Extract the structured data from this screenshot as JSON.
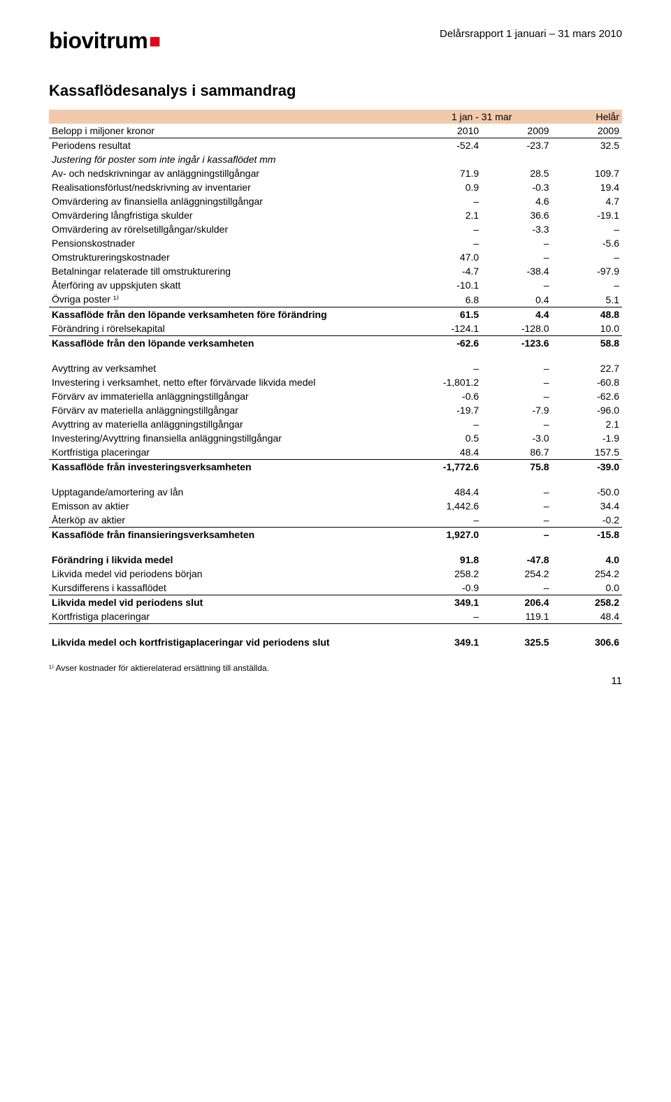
{
  "header": {
    "brand": "biovitrum",
    "report_title": "Delårsrapport 1 januari – 31 mars 2010"
  },
  "section_title": "Kassaflödesanalys i sammandrag",
  "colors": {
    "header_bg": "#f3c9ac",
    "accent": "#e30613",
    "text": "#000000",
    "background": "#ffffff"
  },
  "table": {
    "period_label_left": "Belopp i miljoner kronor",
    "period_col12": "1 jan - 31 mar",
    "period_col3": "Helår",
    "years": [
      "2010",
      "2009",
      "2009"
    ],
    "sections": [
      {
        "rows": [
          {
            "label": "Periodens resultat",
            "v": [
              "-52.4",
              "-23.7",
              "32.5"
            ]
          },
          {
            "label": "Justering för poster som inte ingår i kassaflödet mm",
            "italic": true,
            "v": [
              "",
              "",
              ""
            ]
          },
          {
            "label": "Av- och nedskrivningar av anläggningstillgångar",
            "v": [
              "71.9",
              "28.5",
              "109.7"
            ]
          },
          {
            "label": "Realisationsförlust/nedskrivning av inventarier",
            "v": [
              "0.9",
              "-0.3",
              "19.4"
            ]
          },
          {
            "label": "Omvärdering av finansiella anläggningstillgångar",
            "v": [
              "–",
              "4.6",
              "4.7"
            ]
          },
          {
            "label": "Omvärdering långfristiga skulder",
            "v": [
              "2.1",
              "36.6",
              "-19.1"
            ]
          },
          {
            "label": "Omvärdering av rörelsetillgångar/skulder",
            "v": [
              "–",
              "-3.3",
              "–"
            ]
          },
          {
            "label": "Pensionskostnader",
            "v": [
              "–",
              "–",
              "-5.6"
            ]
          },
          {
            "label": "Omstruktureringskostnader",
            "v": [
              "47.0",
              "–",
              "–"
            ]
          },
          {
            "label": "Betalningar relaterade till omstrukturering",
            "v": [
              "-4.7",
              "-38.4",
              "-97.9"
            ]
          },
          {
            "label": "Återföring av uppskjuten skatt",
            "v": [
              "-10.1",
              "–",
              "–"
            ]
          },
          {
            "label": "Övriga poster ¹⁾",
            "v": [
              "6.8",
              "0.4",
              "5.1"
            ],
            "underline": true
          },
          {
            "label": "Kassaflöde från den löpande verksamheten före förändring",
            "bold": true,
            "v": [
              "61.5",
              "4.4",
              "48.8"
            ]
          },
          {
            "label": "Förändring i rörelsekapital",
            "v": [
              "-124.1",
              "-128.0",
              "10.0"
            ],
            "underline": true
          },
          {
            "label": "Kassaflöde från den löpande verksamheten",
            "bold": true,
            "v": [
              "-62.6",
              "-123.6",
              "58.8"
            ]
          }
        ]
      },
      {
        "rows": [
          {
            "label": "Avyttring av verksamhet",
            "v": [
              "–",
              "–",
              "22.7"
            ]
          },
          {
            "label": "Investering i verksamhet, netto efter förvärvade likvida medel",
            "v": [
              "-1,801.2",
              "–",
              "-60.8"
            ]
          },
          {
            "label": "Förvärv av immateriella anläggningstillgångar",
            "v": [
              "-0.6",
              "–",
              "-62.6"
            ]
          },
          {
            "label": "Förvärv av materiella anläggningstillgångar",
            "v": [
              "-19.7",
              "-7.9",
              "-96.0"
            ]
          },
          {
            "label": "Avyttring av materiella anläggningstillgångar",
            "v": [
              "–",
              "–",
              "2.1"
            ]
          },
          {
            "label": "Investering/Avyttring finansiella anläggningstillgångar",
            "v": [
              "0.5",
              "-3.0",
              "-1.9"
            ]
          },
          {
            "label": "Kortfristiga placeringar",
            "v": [
              "48.4",
              "86.7",
              "157.5"
            ],
            "underline": true
          },
          {
            "label": "Kassaflöde från investeringsverksamheten",
            "bold": true,
            "v": [
              "-1,772.6",
              "75.8",
              "-39.0"
            ]
          }
        ]
      },
      {
        "rows": [
          {
            "label": "Upptagande/amortering av lån",
            "v": [
              "484.4",
              "–",
              "-50.0"
            ]
          },
          {
            "label": "Emisson av aktier",
            "v": [
              "1,442.6",
              "–",
              "34.4"
            ]
          },
          {
            "label": "Återköp av aktier",
            "v": [
              "–",
              "–",
              "-0.2"
            ],
            "underline": true
          },
          {
            "label": "Kassaflöde från finansieringsverksamheten",
            "bold": true,
            "v": [
              "1,927.0",
              "–",
              "-15.8"
            ]
          }
        ]
      },
      {
        "rows": [
          {
            "label": "Förändring i likvida medel",
            "bold": true,
            "v": [
              "91.8",
              "-47.8",
              "4.0"
            ]
          },
          {
            "label": "Likvida medel vid periodens början",
            "v": [
              "258.2",
              "254.2",
              "254.2"
            ]
          },
          {
            "label": "Kursdifferens i kassaflödet",
            "v": [
              "-0.9",
              "–",
              "0.0"
            ],
            "underline": true
          },
          {
            "label": "Likvida medel vid periodens slut",
            "bold": true,
            "v": [
              "349.1",
              "206.4",
              "258.2"
            ]
          },
          {
            "label": "Kortfristiga placeringar",
            "v": [
              "–",
              "119.1",
              "48.4"
            ],
            "underline": true
          }
        ]
      },
      {
        "rows": [
          {
            "label": "Likvida medel och kortfristigaplaceringar vid periodens slut",
            "bold": true,
            "v": [
              "349.1",
              "325.5",
              "306.6"
            ]
          }
        ]
      }
    ]
  },
  "footnote": "¹⁾ Avser kostnader för aktierelaterad ersättning till anställda.",
  "page_number": "11"
}
